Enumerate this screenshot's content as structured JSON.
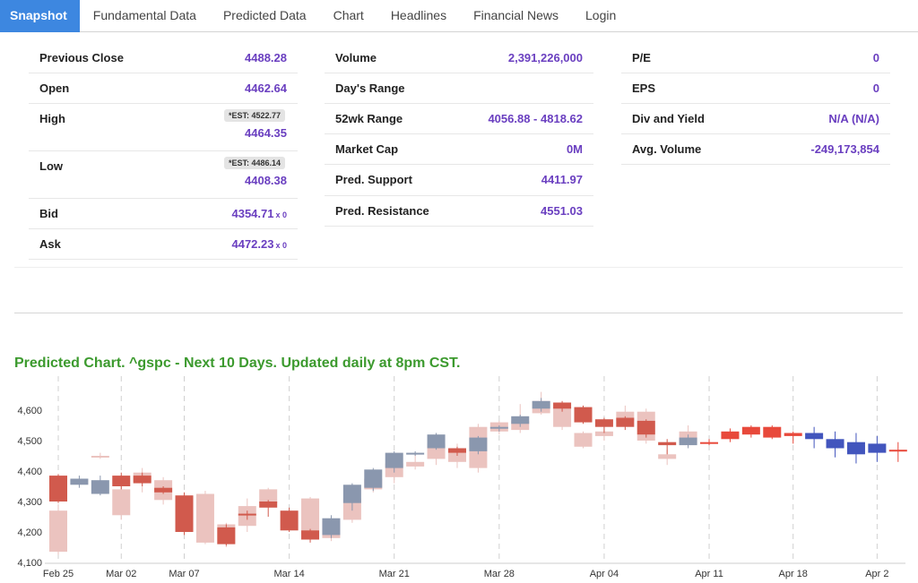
{
  "tabs": [
    {
      "label": "Snapshot",
      "active": true
    },
    {
      "label": "Fundamental Data",
      "active": false
    },
    {
      "label": "Predicted Data",
      "active": false
    },
    {
      "label": "Chart",
      "active": false
    },
    {
      "label": "Headlines",
      "active": false
    },
    {
      "label": "Financial News",
      "active": false
    },
    {
      "label": "Login",
      "active": false
    }
  ],
  "quote": {
    "previous_close": {
      "label": "Previous Close",
      "value": "4488.28"
    },
    "open": {
      "label": "Open",
      "value": "4462.64"
    },
    "high": {
      "label": "High",
      "est": "*EST: 4522.77",
      "value": "4464.35"
    },
    "low": {
      "label": "Low",
      "est": "*EST: 4486.14",
      "value": "4408.38"
    },
    "bid": {
      "label": "Bid",
      "value": "4354.71",
      "size": "x 0"
    },
    "ask": {
      "label": "Ask",
      "value": "4472.23",
      "size": "x 0"
    },
    "volume": {
      "label": "Volume",
      "value": "2,391,226,000"
    },
    "days_range": {
      "label": "Day's Range",
      "value": ""
    },
    "wk52_range": {
      "label": "52wk Range",
      "value": "4056.88 - 4818.62"
    },
    "market_cap": {
      "label": "Market Cap",
      "value": "0M"
    },
    "pred_support": {
      "label": "Pred. Support",
      "value": "4411.97"
    },
    "pred_resistance": {
      "label": "Pred. Resistance",
      "value": "4551.03"
    },
    "pe": {
      "label": "P/E",
      "value": "0"
    },
    "eps": {
      "label": "EPS",
      "value": "0"
    },
    "div_yield": {
      "label": "Div and Yield",
      "value": "N/A (N/A)"
    },
    "avg_volume": {
      "label": "Avg. Volume",
      "value": "-249,173,854"
    }
  },
  "chart_title": "Predicted Chart. ^gspc - Next 10 Days. Updated daily at 8pm CST.",
  "colors": {
    "accent_tab": "#3d87e0",
    "value_text": "#6a3fc0",
    "chart_title": "#3c9a2e",
    "hist_up": "#8a97ae",
    "hist_down": "#d15a4d",
    "ghost_up": "#d8dbe3",
    "ghost_down": "#ebc3bf",
    "pred_up": "#e8493b",
    "pred_down": "#4255bd"
  },
  "chart_data": {
    "type": "candlestick",
    "title": "",
    "ylim": [
      4100,
      4700
    ],
    "y_ticks": [
      4100,
      4200,
      4300,
      4400,
      4500,
      4600
    ],
    "y_tick_labels": [
      "4,100",
      "4,200",
      "4,300",
      "4,400",
      "4,500",
      "4,600"
    ],
    "x_tick_labels": [
      "Feb 25",
      "Mar 02",
      "Mar 07",
      "Mar 14",
      "Mar 21",
      "Mar 28",
      "Apr 04",
      "Apr 11",
      "Apr 18",
      "Apr 2"
    ],
    "x_tick_index": [
      0,
      3,
      6,
      11,
      16,
      21,
      26,
      31,
      35,
      39
    ],
    "grid": "vertical dashed",
    "series": [
      {
        "role": "ghost",
        "candles": [
          [
            0,
            4270,
            4135,
            4290,
            4125
          ],
          [
            3,
            4340,
            4255,
            4370,
            4240
          ],
          [
            4,
            4395,
            4365,
            4410,
            4330
          ],
          [
            5,
            4370,
            4305,
            4380,
            4290
          ],
          [
            7,
            4325,
            4165,
            4335,
            4160
          ],
          [
            8,
            4225,
            4160,
            4230,
            4150
          ],
          [
            9,
            4285,
            4220,
            4310,
            4200
          ],
          [
            10,
            4340,
            4295,
            4345,
            4280
          ],
          [
            12,
            4310,
            4195,
            4315,
            4180
          ],
          [
            13,
            4235,
            4180,
            4245,
            4170
          ],
          [
            14,
            4310,
            4240,
            4320,
            4230
          ],
          [
            15,
            4375,
            4340,
            4385,
            4330
          ],
          [
            16,
            4425,
            4380,
            4430,
            4360
          ],
          [
            17,
            4430,
            4415,
            4455,
            4405
          ],
          [
            18,
            4490,
            4440,
            4525,
            4420
          ],
          [
            19,
            4470,
            4430,
            4490,
            4410
          ],
          [
            20,
            4545,
            4410,
            4555,
            4395
          ],
          [
            21,
            4560,
            4530,
            4565,
            4520
          ],
          [
            22,
            4565,
            4535,
            4620,
            4525
          ],
          [
            23,
            4630,
            4590,
            4660,
            4585
          ],
          [
            24,
            4610,
            4545,
            4615,
            4535
          ],
          [
            25,
            4525,
            4480,
            4530,
            4475
          ],
          [
            26,
            4530,
            4515,
            4575,
            4500
          ],
          [
            27,
            4595,
            4565,
            4615,
            4555
          ],
          [
            28,
            4595,
            4500,
            4605,
            4490
          ],
          [
            29,
            4455,
            4440,
            4470,
            4420
          ],
          [
            30,
            4530,
            4490,
            4550,
            4480
          ],
          [
            2,
            4450,
            4445,
            4460,
            4440
          ]
        ]
      },
      {
        "role": "history",
        "candles": [
          [
            0,
            4385,
            4300,
            4390,
            4295
          ],
          [
            1,
            4355,
            4375,
            4385,
            4345
          ],
          [
            2,
            4325,
            4370,
            4385,
            4320
          ],
          [
            3,
            4385,
            4350,
            4395,
            4340
          ],
          [
            4,
            4385,
            4360,
            4395,
            4350
          ],
          [
            5,
            4345,
            4330,
            4350,
            4325
          ],
          [
            6,
            4320,
            4200,
            4330,
            4190
          ],
          [
            8,
            4215,
            4160,
            4225,
            4155
          ],
          [
            9,
            4260,
            4255,
            4270,
            4240
          ],
          [
            10,
            4300,
            4280,
            4305,
            4250
          ],
          [
            11,
            4270,
            4205,
            4280,
            4200
          ],
          [
            12,
            4205,
            4175,
            4210,
            4165
          ],
          [
            13,
            4190,
            4245,
            4255,
            4180
          ],
          [
            14,
            4295,
            4355,
            4360,
            4270
          ],
          [
            15,
            4345,
            4405,
            4410,
            4335
          ],
          [
            16,
            4410,
            4460,
            4465,
            4395
          ],
          [
            17,
            4455,
            4460,
            4465,
            4450
          ],
          [
            18,
            4475,
            4520,
            4525,
            4470
          ],
          [
            19,
            4475,
            4460,
            4480,
            4450
          ],
          [
            20,
            4465,
            4510,
            4515,
            4455
          ],
          [
            21,
            4540,
            4545,
            4550,
            4530
          ],
          [
            22,
            4555,
            4580,
            4585,
            4545
          ],
          [
            23,
            4605,
            4630,
            4640,
            4595
          ],
          [
            24,
            4625,
            4605,
            4630,
            4595
          ],
          [
            25,
            4610,
            4560,
            4615,
            4555
          ],
          [
            26,
            4570,
            4545,
            4575,
            4525
          ],
          [
            27,
            4575,
            4545,
            4580,
            4535
          ],
          [
            28,
            4565,
            4520,
            4570,
            4510
          ],
          [
            29,
            4495,
            4485,
            4505,
            4455
          ],
          [
            30,
            4485,
            4510,
            4520,
            4475
          ]
        ]
      },
      {
        "role": "prediction",
        "candles": [
          [
            31,
            4495,
            4495,
            4505,
            4485
          ],
          [
            32,
            4505,
            4530,
            4540,
            4495
          ],
          [
            33,
            4520,
            4545,
            4550,
            4510
          ],
          [
            34,
            4510,
            4545,
            4550,
            4505
          ],
          [
            35,
            4515,
            4525,
            4530,
            4490
          ],
          [
            36,
            4525,
            4505,
            4545,
            4475
          ],
          [
            37,
            4505,
            4475,
            4530,
            4445
          ],
          [
            38,
            4495,
            4455,
            4525,
            4425
          ],
          [
            39,
            4490,
            4460,
            4515,
            4430
          ],
          [
            40,
            4470,
            4470,
            4495,
            4430
          ]
        ]
      }
    ]
  }
}
